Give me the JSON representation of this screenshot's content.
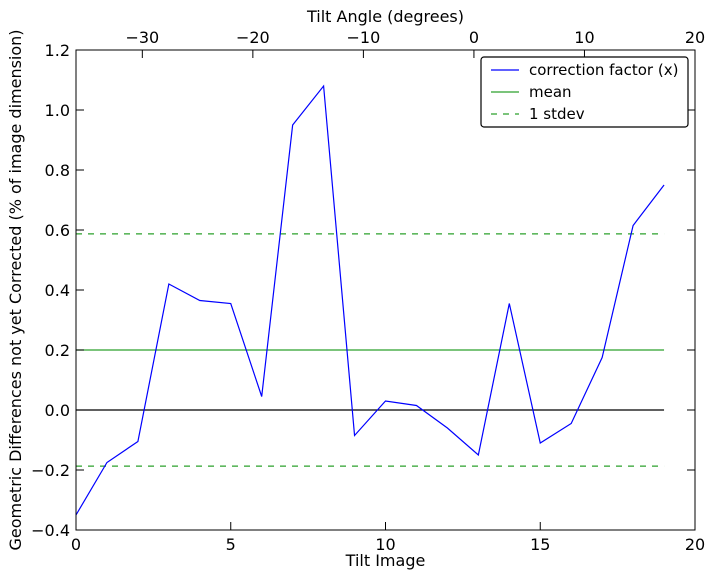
{
  "chart_data": {
    "type": "line",
    "xlabel": "Tilt Image",
    "x2label": "Tilt Angle (degrees)",
    "ylabel": "Geometric Differences not yet Corrected (% of image dimension)",
    "xlim": [
      0,
      20
    ],
    "ylim": [
      -0.4,
      1.2
    ],
    "x2lim": [
      -36,
      20
    ],
    "xticks": [
      0,
      5,
      10,
      15,
      20
    ],
    "yticks": [
      -0.4,
      -0.2,
      0.0,
      0.2,
      0.4,
      0.6,
      0.8,
      1.0,
      1.2
    ],
    "x2ticks": [
      -30,
      -20,
      -10,
      0,
      10,
      20
    ],
    "xtick_labels": [
      "0",
      "5",
      "10",
      "15",
      "20"
    ],
    "ytick_labels": [
      "−0.4",
      "−0.2",
      "0.0",
      "0.2",
      "0.4",
      "0.6",
      "0.8",
      "1.0",
      "1.2"
    ],
    "x2tick_labels": [
      "−30",
      "−20",
      "−10",
      "0",
      "10",
      "20"
    ],
    "legend_position": "top-right",
    "grid": false,
    "series": [
      {
        "name": "correction factor (x)",
        "color": "#0000ff",
        "style": "solid",
        "x": [
          0,
          1,
          2,
          3,
          4,
          5,
          6,
          7,
          8,
          9,
          10,
          11,
          12,
          13,
          14,
          15,
          16,
          17,
          18,
          19
        ],
        "values": [
          -0.35,
          -0.175,
          -0.105,
          0.42,
          0.365,
          0.355,
          0.045,
          0.95,
          1.08,
          -0.085,
          0.03,
          0.015,
          -0.06,
          -0.15,
          0.355,
          -0.11,
          -0.045,
          0.175,
          0.615,
          0.75
        ]
      },
      {
        "name": "mean",
        "color": "#2ca02c",
        "style": "solid",
        "x": [
          0,
          19
        ],
        "values": [
          0.2,
          0.2
        ]
      },
      {
        "name": "1 stdev",
        "color": "#2ca02c",
        "style": "dashed",
        "x": [
          0,
          19
        ],
        "values": [
          0.587,
          0.587
        ]
      },
      {
        "name": "",
        "color": "#2ca02c",
        "style": "dashed",
        "x": [
          0,
          19
        ],
        "values": [
          -0.187,
          -0.187
        ]
      },
      {
        "name": "",
        "color": "#000000",
        "style": "solid",
        "x": [
          0,
          19
        ],
        "values": [
          0.0,
          0.0
        ]
      }
    ]
  }
}
